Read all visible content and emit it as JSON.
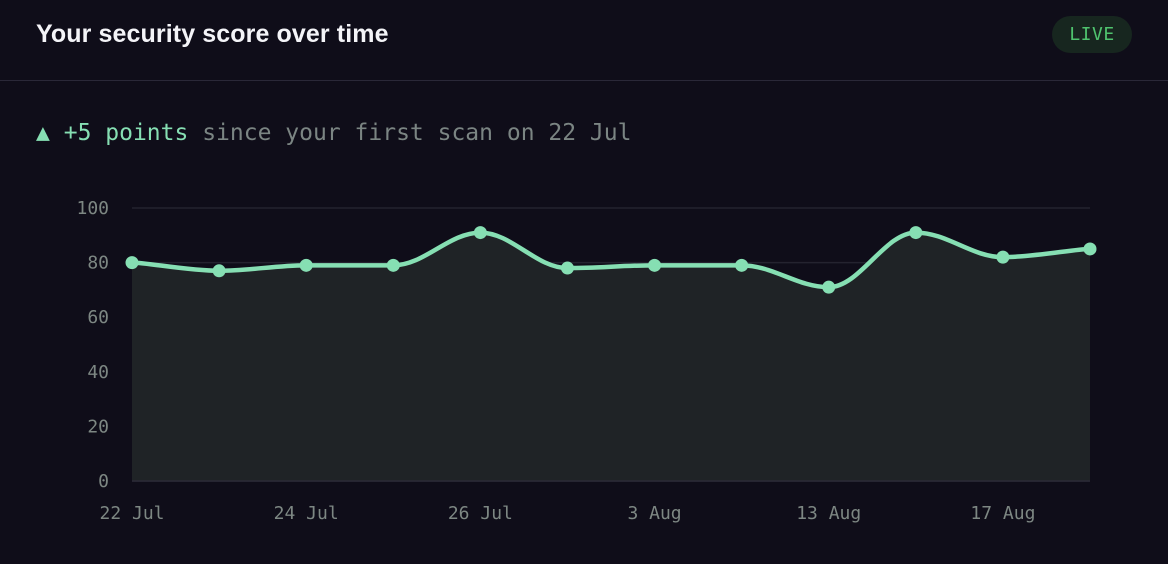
{
  "header": {
    "title": "Your security score over time",
    "badge": "LIVE"
  },
  "summary": {
    "arrow": "▲",
    "delta": "+5 points",
    "text": "since your first scan on 22 Jul"
  },
  "colors": {
    "background": "#0f0d19",
    "accent": "#86dfb3",
    "badge_bg": "#17261f",
    "badge_text": "#4fc36e",
    "grid": "#24232f",
    "area_fill": "#1f2326"
  },
  "chart_data": {
    "type": "area",
    "x_ticks": [
      "22 Jul",
      "24 Jul",
      "26 Jul",
      "3 Aug",
      "13 Aug",
      "17 Aug"
    ],
    "x_tick_positions": [
      0,
      2,
      4,
      6,
      8,
      10
    ],
    "values": [
      80,
      77,
      79,
      79,
      91,
      78,
      79,
      79,
      71,
      91,
      82,
      85
    ],
    "ylim": [
      0,
      100
    ],
    "y_ticks": [
      0,
      20,
      40,
      60,
      80,
      100
    ],
    "grid": true
  }
}
